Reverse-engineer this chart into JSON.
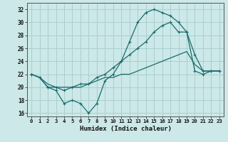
{
  "xlabel": "Humidex (Indice chaleur)",
  "xlim": [
    -0.5,
    23.5
  ],
  "ylim": [
    15.5,
    33.0
  ],
  "yticks": [
    16,
    18,
    20,
    22,
    24,
    26,
    28,
    30,
    32
  ],
  "xticks": [
    0,
    1,
    2,
    3,
    4,
    5,
    6,
    7,
    8,
    9,
    10,
    11,
    12,
    13,
    14,
    15,
    16,
    17,
    18,
    19,
    20,
    21,
    22,
    23
  ],
  "bg_color": "#cce8e8",
  "grid_color": "#aacfcf",
  "line_color": "#1a6b6b",
  "line1_x": [
    0,
    1,
    2,
    3,
    4,
    5,
    6,
    7,
    8,
    9,
    10,
    11,
    12,
    13,
    14,
    15,
    16,
    17,
    18,
    19,
    20,
    21,
    22,
    23
  ],
  "line1_y": [
    22.0,
    21.5,
    20.0,
    19.5,
    17.5,
    18.0,
    17.5,
    16.0,
    17.5,
    21.0,
    22.0,
    24.0,
    27.0,
    30.0,
    31.5,
    32.0,
    31.5,
    31.0,
    30.0,
    28.5,
    25.0,
    22.5,
    22.5,
    22.5
  ],
  "line2_x": [
    0,
    1,
    2,
    3,
    4,
    5,
    6,
    7,
    8,
    9,
    10,
    11,
    12,
    13,
    14,
    15,
    16,
    17,
    18,
    19,
    20,
    21,
    22,
    23
  ],
  "line2_y": [
    22.0,
    21.5,
    20.0,
    20.0,
    19.5,
    20.0,
    20.5,
    20.5,
    21.5,
    22.0,
    23.0,
    24.0,
    25.0,
    26.0,
    27.0,
    28.5,
    29.5,
    30.0,
    28.5,
    28.5,
    22.5,
    22.0,
    22.5,
    22.5
  ],
  "line3_x": [
    0,
    1,
    2,
    3,
    4,
    5,
    6,
    7,
    8,
    9,
    10,
    11,
    12,
    13,
    14,
    15,
    16,
    17,
    18,
    19,
    20,
    21,
    22,
    23
  ],
  "line3_y": [
    22.0,
    21.5,
    20.5,
    20.0,
    20.0,
    20.0,
    20.0,
    20.5,
    21.0,
    21.5,
    21.5,
    22.0,
    22.0,
    22.5,
    23.0,
    23.5,
    24.0,
    24.5,
    25.0,
    25.5,
    23.5,
    22.5,
    22.5,
    22.5
  ]
}
